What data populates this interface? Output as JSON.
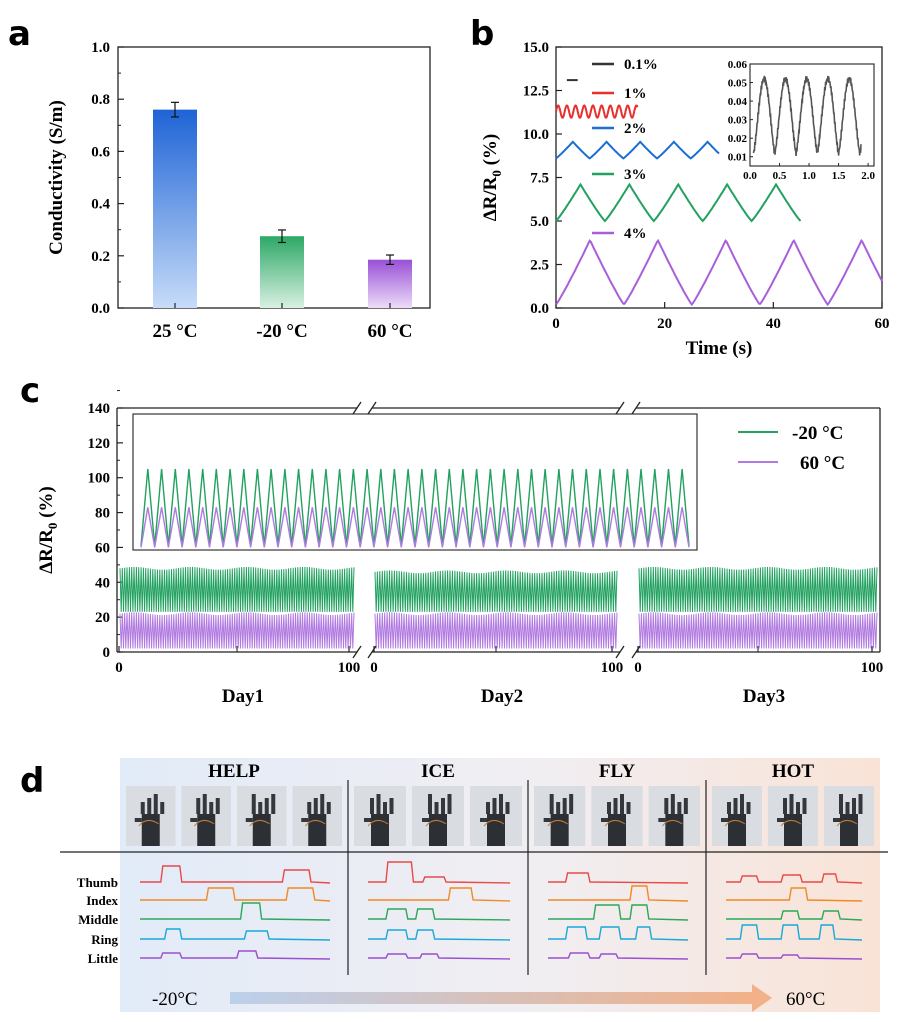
{
  "panel_labels": [
    "a",
    "b",
    "c",
    "d"
  ],
  "chart_data": [
    {
      "panel": "a",
      "type": "bar",
      "ylabel": "Conductivity (S/m)",
      "ylim": [
        0,
        1.0
      ],
      "yticks": [
        "0.0",
        "0.2",
        "0.4",
        "0.6",
        "0.8",
        "1.0"
      ],
      "categories": [
        "25 °C",
        "-20 °C",
        "60 °C"
      ],
      "values": [
        0.76,
        0.275,
        0.185
      ],
      "errors": [
        0.028,
        0.024,
        0.018
      ],
      "colors": [
        [
          "#1e63d6",
          "#c7dcf8"
        ],
        [
          "#2da866",
          "#d8f0e2"
        ],
        [
          "#9950d6",
          "#ecdcf8"
        ]
      ]
    },
    {
      "panel": "b",
      "type": "line",
      "xlabel": "Time (s)",
      "ylabel_main": "ΔR/R",
      "ylabel_sub": "0",
      "ylabel_unit": " (%)",
      "xlim": [
        0,
        60
      ],
      "ylim": [
        0,
        15
      ],
      "xticks": [
        "0",
        "20",
        "40",
        "60"
      ],
      "yticks": [
        "0.0",
        "2.5",
        "5.0",
        "7.5",
        "10.0",
        "12.5",
        "15.0"
      ],
      "series": [
        {
          "name": "0.1%",
          "color": "#333333",
          "base": 13.1,
          "amp": 0.0,
          "period": 2.0,
          "duration": 2.0
        },
        {
          "name": "1%",
          "color": "#e83030",
          "base": 11.3,
          "amp": 0.35,
          "period": 1.6,
          "duration": 15
        },
        {
          "name": "2%",
          "color": "#1b6ed2",
          "base": 8.6,
          "amp": 0.95,
          "period": 6.2,
          "duration": 30
        },
        {
          "name": "3%",
          "color": "#22a160",
          "base": 5.0,
          "amp": 2.1,
          "period": 9.0,
          "duration": 45
        },
        {
          "name": "4%",
          "color": "#a860d8",
          "base": 0.2,
          "amp": 3.7,
          "period": 12.5,
          "duration": 60
        }
      ],
      "inset": {
        "xlim": [
          0,
          2.1
        ],
        "ylim": [
          0.005,
          0.06
        ],
        "xticks": [
          "0.0",
          "0.5",
          "1.0",
          "1.5",
          "2.0"
        ],
        "yticks": [
          "0.01",
          "0.02",
          "0.03",
          "0.04",
          "0.05",
          "0.06"
        ],
        "period": 0.36,
        "low": 0.012,
        "high": 0.052,
        "color": "#555555"
      }
    },
    {
      "panel": "c",
      "type": "line",
      "ylabel_main": "ΔR/R",
      "ylabel_sub": "0",
      "ylabel_unit": " (%)",
      "ylim": [
        0,
        140
      ],
      "yticks": [
        "0",
        "20",
        "40",
        "60",
        "80",
        "100",
        "120",
        "140"
      ],
      "segments": [
        {
          "label": "Day1",
          "xticks": [
            "0",
            "100"
          ]
        },
        {
          "label": "Day2",
          "xticks": [
            "0",
            "100"
          ]
        },
        {
          "label": "Day3",
          "xticks": [
            "0",
            "100"
          ]
        }
      ],
      "series": [
        {
          "name": "-20 °C",
          "color": "#22a160",
          "low": 23,
          "high": 48
        },
        {
          "name": "60 °C",
          "color": "#b07ae0",
          "low": 6,
          "high": 22
        }
      ],
      "inset": {
        "cycles": 40,
        "series_peaks": [
          105,
          83
        ],
        "series_lows": [
          61,
          60
        ]
      }
    },
    {
      "panel": "d",
      "type": "line",
      "words": [
        "HELP",
        "ICE",
        "FLY",
        "HOT"
      ],
      "fingers": [
        "Thumb",
        "Index",
        "Middle",
        "Ring",
        "Little"
      ],
      "finger_colors": [
        "#e84a4a",
        "#f08a24",
        "#2aa85c",
        "#19a8d8",
        "#9a4fd0"
      ],
      "temp_left": "-20°C",
      "temp_right": "60°C",
      "photo_alt": "robot hand photo"
    }
  ]
}
